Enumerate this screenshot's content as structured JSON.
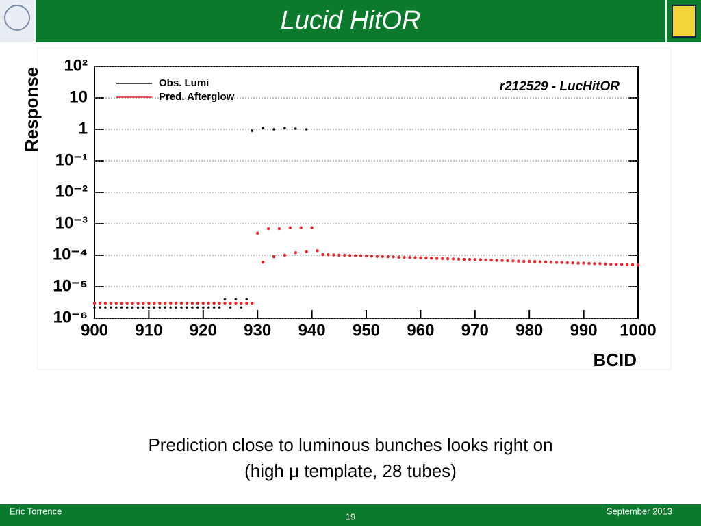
{
  "slide": {
    "title": "Lucid HitOR",
    "body": [
      "Prediction close to luminous bunches looks right on",
      "(high μ template, 28 tubes)"
    ],
    "footer_left": "Eric Torrence",
    "page_number": "19",
    "footer_right": "September 2013"
  },
  "chart_data": {
    "type": "scatter",
    "annotation": "r212529 - LucHitOR",
    "x_label": "BCID",
    "y_label": "Response",
    "xlim": [
      900,
      1000
    ],
    "xticks": [
      900,
      910,
      920,
      930,
      940,
      950,
      960,
      970,
      980,
      990,
      1000
    ],
    "ylim": [
      1e-06,
      100
    ],
    "log_y": true,
    "grid": true,
    "yticks": [
      {
        "value": 1e-06,
        "label": "10⁻⁶"
      },
      {
        "value": 1e-05,
        "label": "10⁻⁵"
      },
      {
        "value": 0.0001,
        "label": "10⁻⁴"
      },
      {
        "value": 0.001,
        "label": "10⁻³"
      },
      {
        "value": 0.01,
        "label": "10⁻²"
      },
      {
        "value": 0.1,
        "label": "10⁻¹"
      },
      1,
      10,
      {
        "value": 100,
        "label": "10²"
      }
    ],
    "series": [
      {
        "name": "Obs. Lumi",
        "color": "#111111",
        "x": [
          900,
          901,
          902,
          903,
          904,
          905,
          906,
          907,
          908,
          909,
          910,
          911,
          912,
          913,
          914,
          915,
          916,
          917,
          918,
          919,
          920,
          921,
          922,
          923,
          924,
          925,
          926,
          927,
          928,
          929,
          931,
          933,
          935,
          937,
          939
        ],
        "values": [
          2.2e-06,
          2.2e-06,
          2.2e-06,
          2.2e-06,
          2.2e-06,
          2.2e-06,
          2.2e-06,
          2.2e-06,
          2.2e-06,
          2.2e-06,
          2.2e-06,
          2.2e-06,
          2.2e-06,
          2.2e-06,
          2.2e-06,
          2.2e-06,
          2.2e-06,
          2.2e-06,
          2.2e-06,
          2.2e-06,
          2.2e-06,
          2.2e-06,
          2.2e-06,
          2.2e-06,
          4e-06,
          2.2e-06,
          4e-06,
          2.2e-06,
          4e-06,
          0.9,
          1.1,
          1.0,
          1.1,
          1.05,
          1.0
        ]
      },
      {
        "name": "Pred. Afterglow",
        "color": "#e8282c",
        "x": [
          900,
          901,
          902,
          903,
          904,
          905,
          906,
          907,
          908,
          909,
          910,
          911,
          912,
          913,
          914,
          915,
          916,
          917,
          918,
          919,
          920,
          921,
          922,
          923,
          924,
          925,
          926,
          927,
          928,
          929,
          930,
          931,
          932,
          933,
          934,
          935,
          936,
          937,
          938,
          939,
          940,
          941,
          942,
          943,
          944,
          945,
          946,
          947,
          948,
          949,
          950,
          951,
          952,
          953,
          954,
          955,
          956,
          957,
          958,
          959,
          960,
          961,
          962,
          963,
          964,
          965,
          966,
          967,
          968,
          969,
          970,
          971,
          972,
          973,
          974,
          975,
          976,
          977,
          978,
          979,
          980,
          981,
          982,
          983,
          984,
          985,
          986,
          987,
          988,
          989,
          990,
          991,
          992,
          993,
          994,
          995,
          996,
          997,
          998,
          999,
          1000
        ],
        "values": [
          3e-06,
          3e-06,
          3e-06,
          3e-06,
          3e-06,
          3e-06,
          3e-06,
          3e-06,
          3e-06,
          3e-06,
          3e-06,
          3e-06,
          3e-06,
          3e-06,
          3e-06,
          3e-06,
          3e-06,
          3e-06,
          3e-06,
          3e-06,
          3e-06,
          3e-06,
          3e-06,
          3e-06,
          3e-06,
          3e-06,
          3e-06,
          3e-06,
          3e-06,
          3e-06,
          0.0005,
          6e-05,
          0.0007,
          9e-05,
          0.0007,
          0.0001,
          0.00075,
          0.00012,
          0.00075,
          0.00013,
          0.00075,
          0.00014,
          0.000105,
          0.000104,
          0.000102,
          0.000101,
          0.0001,
          9.8e-05,
          9.7e-05,
          9.6e-05,
          9.5e-05,
          9.3e-05,
          9.2e-05,
          9.1e-05,
          9e-05,
          8.9e-05,
          8.7e-05,
          8.6e-05,
          8.5e-05,
          8.4e-05,
          8.3e-05,
          8.2e-05,
          8.1e-05,
          7.9e-05,
          7.8e-05,
          7.7e-05,
          7.6e-05,
          7.5e-05,
          7.4e-05,
          7.4e-05,
          7.3e-05,
          7.2e-05,
          7.1e-05,
          7e-05,
          6.9e-05,
          6.8e-05,
          6.7e-05,
          6.6e-05,
          6.5e-05,
          6.4e-05,
          6.4e-05,
          6.3e-05,
          6.2e-05,
          6.1e-05,
          6e-05,
          5.9e-05,
          5.9e-05,
          5.8e-05,
          5.7e-05,
          5.6e-05,
          5.6e-05,
          5.5e-05,
          5.4e-05,
          5.4e-05,
          5.3e-05,
          5.2e-05,
          5.2e-05,
          5.1e-05,
          5e-05,
          5e-05,
          4.9e-05
        ]
      }
    ]
  }
}
